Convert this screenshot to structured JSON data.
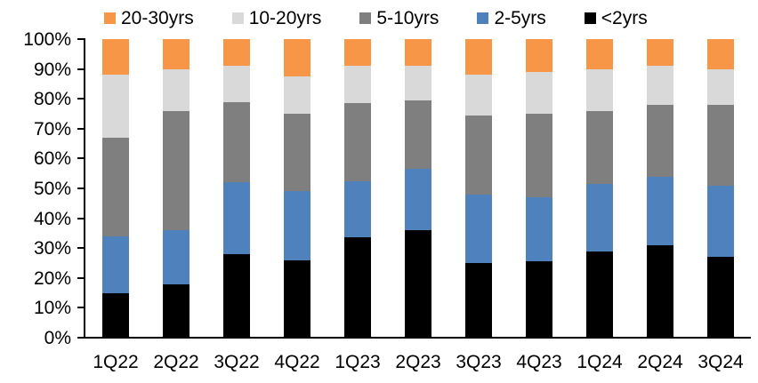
{
  "chart_data": {
    "type": "bar",
    "subtype": "stacked-100-percent-column",
    "title": "",
    "xlabel": "",
    "ylabel": "",
    "gridlines": false,
    "plot_background": "#ffffff",
    "categories": [
      "1Q22",
      "2Q22",
      "3Q22",
      "4Q22",
      "1Q23",
      "2Q23",
      "3Q23",
      "4Q23",
      "1Q24",
      "2Q24",
      "3Q24"
    ],
    "series": [
      {
        "name": "<2yrs",
        "color": "#000000",
        "values": [
          15,
          18,
          28,
          26,
          33.5,
          36,
          25,
          25.5,
          29,
          31,
          27
        ]
      },
      {
        "name": "2-5yrs",
        "color": "#4F81BD",
        "values": [
          19,
          18,
          24,
          23,
          19,
          20.5,
          23,
          21.5,
          22.5,
          23,
          24
        ]
      },
      {
        "name": "5-10yrs",
        "color": "#7F7F7F",
        "values": [
          33,
          40,
          27,
          26,
          26,
          23,
          26.5,
          28,
          24.5,
          24,
          27
        ]
      },
      {
        "name": "10-20yrs",
        "color": "#D9D9D9",
        "values": [
          21,
          14,
          12,
          12.5,
          12.5,
          11.5,
          13.5,
          14,
          14,
          13,
          12
        ]
      },
      {
        "name": "20-30yrs",
        "color": "#F79646",
        "values": [
          12,
          10,
          9,
          12.5,
          9,
          9,
          12,
          11,
          10,
          9,
          10
        ]
      }
    ],
    "stack_order_bottom_to_top": [
      "<2yrs",
      "2-5yrs",
      "5-10yrs",
      "10-20yrs",
      "20-30yrs"
    ],
    "legend": {
      "position": "top",
      "labels": [
        "20-30yrs",
        "10-20yrs",
        "5-10yrs",
        "2-5yrs",
        "<2yrs"
      ]
    },
    "y_axis": {
      "min": 0,
      "max": 100,
      "tick_step": 10,
      "format": "percent",
      "tick_labels": [
        "100%",
        "90%",
        "80%",
        "70%",
        "60%",
        "50%",
        "40%",
        "30%",
        "20%",
        "10%",
        "0%"
      ]
    },
    "x_axis": {
      "tick_labels": [
        "1Q22",
        "2Q22",
        "3Q22",
        "4Q22",
        "1Q23",
        "2Q23",
        "3Q23",
        "4Q23",
        "1Q24",
        "2Q24",
        "3Q24"
      ]
    }
  }
}
